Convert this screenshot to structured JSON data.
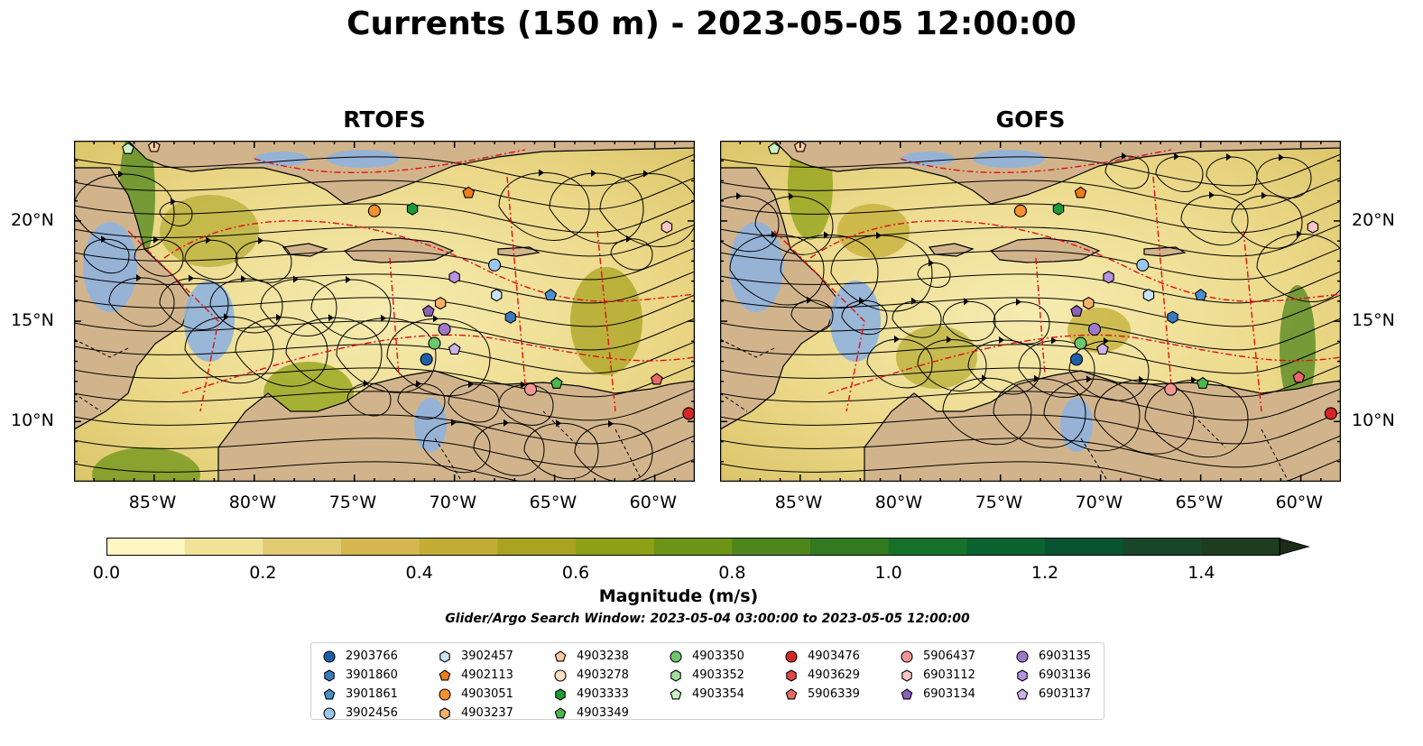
{
  "figure": {
    "title": "Currents (150 m) - 2023-05-05 12:00:00",
    "search_window": "Glider/Argo Search Window: 2023-05-04 03:00:00 to 2023-05-05 12:00:00"
  },
  "chart_data": {
    "type": "heatmap",
    "panels": [
      {
        "title": "RTOFS",
        "xlim": [
          -89,
          -58
        ],
        "ylim": [
          7,
          24
        ],
        "xticks": [
          "85°W",
          "80°W",
          "75°W",
          "70°W",
          "65°W",
          "60°W"
        ],
        "xtick_values": [
          -85,
          -80,
          -75,
          -70,
          -65,
          -60
        ],
        "yticks": [
          "20°N",
          "15°N",
          "10°N"
        ],
        "ytick_values": [
          20,
          15,
          10
        ],
        "floats": [
          {
            "id": "3901860",
            "lon": -67.2,
            "lat": 15.2
          },
          {
            "id": "3901861",
            "lon": -65.2,
            "lat": 16.3
          },
          {
            "id": "3902456",
            "lon": -68.0,
            "lat": 17.8
          },
          {
            "id": "3902457",
            "lon": -67.9,
            "lat": 16.3
          },
          {
            "id": "2903766",
            "lon": -71.4,
            "lat": 13.1
          },
          {
            "id": "4902113",
            "lon": -69.3,
            "lat": 21.4
          },
          {
            "id": "4903051",
            "lon": -74.0,
            "lat": 20.5
          },
          {
            "id": "4903238",
            "lon": -85.0,
            "lat": 23.7
          },
          {
            "id": "4903333",
            "lon": -72.1,
            "lat": 20.6
          },
          {
            "id": "4903350",
            "lon": -71.0,
            "lat": 13.9
          },
          {
            "id": "4903354",
            "lon": -86.3,
            "lat": 23.6
          },
          {
            "id": "4903349",
            "lon": -64.9,
            "lat": 11.9
          },
          {
            "id": "5906437",
            "lon": -66.2,
            "lat": 11.6
          },
          {
            "id": "5906339",
            "lon": -59.9,
            "lat": 12.1
          },
          {
            "id": "4903476",
            "lon": -58.3,
            "lat": 10.4
          },
          {
            "id": "6903112",
            "lon": -59.4,
            "lat": 19.7
          },
          {
            "id": "6903135",
            "lon": -70.5,
            "lat": 14.6
          },
          {
            "id": "6903134",
            "lon": -71.3,
            "lat": 15.5
          },
          {
            "id": "6903136",
            "lon": -70.0,
            "lat": 17.2
          },
          {
            "id": "6903137",
            "lon": -70.0,
            "lat": 13.6
          },
          {
            "id": "4903237",
            "lon": -70.7,
            "lat": 15.9
          }
        ]
      },
      {
        "title": "GOFS",
        "xlim": [
          -89,
          -58
        ],
        "ylim": [
          7,
          24
        ],
        "xticks": [
          "85°W",
          "80°W",
          "75°W",
          "70°W",
          "65°W",
          "60°W"
        ],
        "xtick_values": [
          -85,
          -80,
          -75,
          -70,
          -65,
          -60
        ],
        "yticks": [
          "20°N",
          "15°N",
          "10°N"
        ],
        "ytick_values": [
          20,
          15,
          10
        ],
        "floats": [
          {
            "id": "3901860",
            "lon": -66.4,
            "lat": 15.2
          },
          {
            "id": "3901861",
            "lon": -65.0,
            "lat": 16.3
          },
          {
            "id": "3902456",
            "lon": -67.9,
            "lat": 17.8
          },
          {
            "id": "3902457",
            "lon": -67.6,
            "lat": 16.3
          },
          {
            "id": "2903766",
            "lon": -71.2,
            "lat": 13.1
          },
          {
            "id": "4902113",
            "lon": -71.0,
            "lat": 21.4
          },
          {
            "id": "4903051",
            "lon": -74.0,
            "lat": 20.5
          },
          {
            "id": "4903238",
            "lon": -85.0,
            "lat": 23.7
          },
          {
            "id": "4903333",
            "lon": -72.1,
            "lat": 20.6
          },
          {
            "id": "4903350",
            "lon": -71.0,
            "lat": 13.9
          },
          {
            "id": "4903354",
            "lon": -86.3,
            "lat": 23.6
          },
          {
            "id": "4903349",
            "lon": -64.9,
            "lat": 11.9
          },
          {
            "id": "5906437",
            "lon": -66.5,
            "lat": 11.6
          },
          {
            "id": "5906339",
            "lon": -60.1,
            "lat": 12.2
          },
          {
            "id": "4903476",
            "lon": -58.5,
            "lat": 10.4
          },
          {
            "id": "6903112",
            "lon": -59.4,
            "lat": 19.7
          },
          {
            "id": "6903135",
            "lon": -70.3,
            "lat": 14.6
          },
          {
            "id": "6903134",
            "lon": -71.2,
            "lat": 15.5
          },
          {
            "id": "6903136",
            "lon": -69.6,
            "lat": 17.2
          },
          {
            "id": "6903137",
            "lon": -69.9,
            "lat": 13.6
          },
          {
            "id": "4903237",
            "lon": -70.6,
            "lat": 15.9
          }
        ]
      }
    ],
    "colorbar": {
      "label": "Magnitude (m/s)",
      "min": 0.0,
      "max": 1.5,
      "step": 0.1,
      "extend": "max",
      "ticks": [
        "0.0",
        "0.2",
        "0.4",
        "0.6",
        "0.8",
        "1.0",
        "1.2",
        "1.4"
      ],
      "tick_values": [
        0.0,
        0.2,
        0.4,
        0.6,
        0.8,
        1.0,
        1.2,
        1.4
      ],
      "colors": [
        "#fef6c3",
        "#f1e299",
        "#e1cb73",
        "#d4b84f",
        "#c3ad36",
        "#a9a320",
        "#8ea013",
        "#6c9417",
        "#4f861c",
        "#32791f",
        "#177229",
        "#0b6330",
        "#0a5330",
        "#194628",
        "#1f3e21",
        "#1c2c18"
      ]
    },
    "legend": [
      {
        "id": "2903766",
        "color": "#1f5fa8",
        "marker": "circle"
      },
      {
        "id": "3901860",
        "color": "#3a7abf",
        "marker": "hexagon"
      },
      {
        "id": "3901861",
        "color": "#4a8fd0",
        "marker": "pentagon"
      },
      {
        "id": "3902456",
        "color": "#9cc6ee",
        "marker": "circle"
      },
      {
        "id": "3902457",
        "color": "#c6e3f8",
        "marker": "hexagon"
      },
      {
        "id": "4902113",
        "color": "#f07d17",
        "marker": "pentagon"
      },
      {
        "id": "4903051",
        "color": "#f5912e",
        "marker": "circle"
      },
      {
        "id": "4903237",
        "color": "#f8b06b",
        "marker": "hexagon"
      },
      {
        "id": "4903238",
        "color": "#fbc89a",
        "marker": "pentagon"
      },
      {
        "id": "4903278",
        "color": "#fde0c2",
        "marker": "circle"
      },
      {
        "id": "4903333",
        "color": "#1e9a36",
        "marker": "hexagon"
      },
      {
        "id": "4903349",
        "color": "#4cb84c",
        "marker": "pentagon"
      },
      {
        "id": "4903350",
        "color": "#6dc66d",
        "marker": "circle"
      },
      {
        "id": "4903352",
        "color": "#a5dea0",
        "marker": "hexagon"
      },
      {
        "id": "4903354",
        "color": "#ccf0c6",
        "marker": "pentagon"
      },
      {
        "id": "4903476",
        "color": "#d62728",
        "marker": "circle"
      },
      {
        "id": "4903629",
        "color": "#e0474a",
        "marker": "hexagon"
      },
      {
        "id": "5906339",
        "color": "#e8696b",
        "marker": "pentagon"
      },
      {
        "id": "5906437",
        "color": "#f29694",
        "marker": "circle"
      },
      {
        "id": "6903112",
        "color": "#fbc6c6",
        "marker": "hexagon"
      },
      {
        "id": "6903134",
        "color": "#8a62b8",
        "marker": "pentagon"
      },
      {
        "id": "6903135",
        "color": "#9d79c9",
        "marker": "circle"
      },
      {
        "id": "6903136",
        "color": "#b594dc",
        "marker": "hexagon"
      },
      {
        "id": "6903137",
        "color": "#cdb2ea",
        "marker": "pentagon"
      }
    ]
  }
}
